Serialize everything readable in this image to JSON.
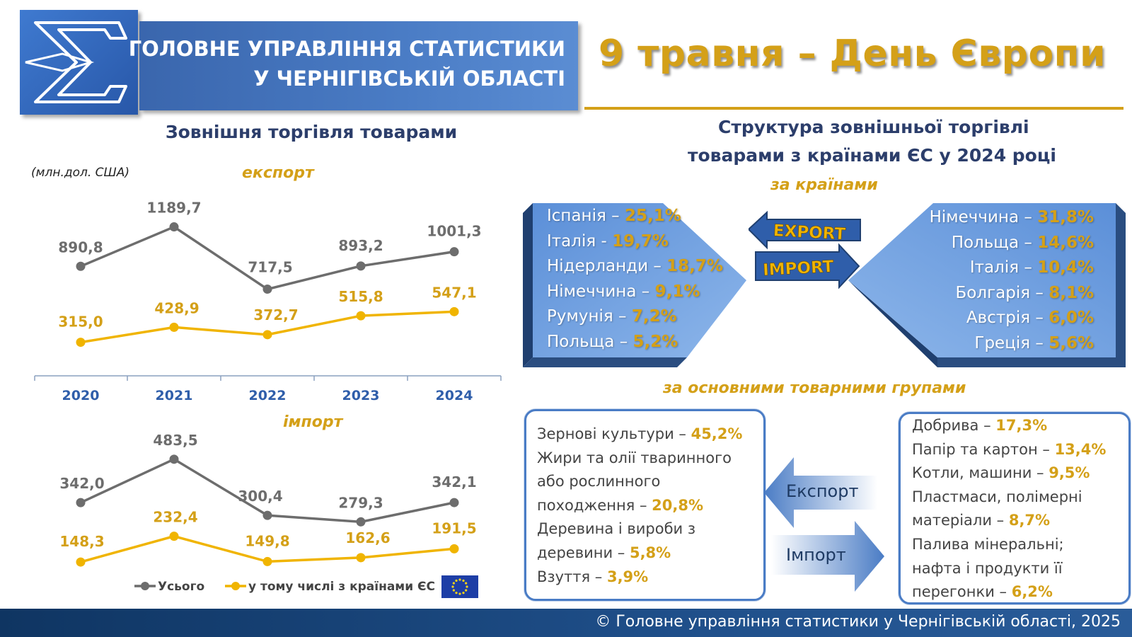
{
  "header": {
    "org_line1": "ГОЛОВНЕ УПРАВЛІННЯ СТАТИСТИКИ",
    "org_line2": "У ЧЕРНІГІВСЬКІЙ ОБЛАСТІ",
    "title": "9 травня – День Європи",
    "logo_icon": "sigma-logo-icon"
  },
  "left": {
    "heading": "Зовнішня торгівля товарами",
    "unit": "(млн.дол. США)"
  },
  "chart_data": [
    {
      "type": "line",
      "title": "експорт",
      "categories": [
        "2020",
        "2021",
        "2022",
        "2023",
        "2024"
      ],
      "series": [
        {
          "name": "Усього",
          "values": [
            890.8,
            1189.7,
            717.5,
            893.2,
            1001.3
          ],
          "labels": [
            "890,8",
            "1189,7",
            "717,5",
            "893,2",
            "1001,3"
          ],
          "color": "#6d6d6d"
        },
        {
          "name": "у тому числі з країнами ЄС",
          "values": [
            315.0,
            428.9,
            372.7,
            515.8,
            547.1
          ],
          "labels": [
            "315,0",
            "428,9",
            "372,7",
            "515,8",
            "547,1"
          ],
          "color": "#f0b400"
        }
      ],
      "ylim": [
        200,
        1300
      ]
    },
    {
      "type": "line",
      "title": "імпорт",
      "categories": [
        "2020",
        "2021",
        "2022",
        "2023",
        "2024"
      ],
      "series": [
        {
          "name": "Усього",
          "values": [
            342.0,
            483.5,
            300.4,
            279.3,
            342.1
          ],
          "labels": [
            "342,0",
            "483,5",
            "300,4",
            "279,3",
            "342,1"
          ],
          "color": "#6d6d6d"
        },
        {
          "name": "у тому числі з країнами ЄС",
          "values": [
            148.3,
            232.4,
            149.8,
            162.6,
            191.5
          ],
          "labels": [
            "148,3",
            "232,4",
            "149,8",
            "162,6",
            "191,5"
          ],
          "color": "#f0b400"
        }
      ],
      "ylim": [
        100,
        550
      ],
      "legend": {
        "position": "bottom",
        "items": [
          "Усього",
          "у тому числі з країнами ЄС"
        ]
      }
    }
  ],
  "right": {
    "heading_line1": "Структура зовнішньої торгівлі",
    "heading_line2": "товарами з країнами ЄС у 2024 році",
    "by_countries": "за країнами",
    "by_groups": "за основними товарними групами",
    "export_badge": "EXPORT",
    "import_badge": "IMPORT",
    "export_countries": [
      {
        "name": "Іспанія – ",
        "pct": "25,1%"
      },
      {
        "name": "Італія  - ",
        "pct": "19,7%"
      },
      {
        "name": "Нідерланди – ",
        "pct": "18,7%"
      },
      {
        "name": "Німеччина – ",
        "pct": "9,1%"
      },
      {
        "name": "Румунія – ",
        "pct": "7,2%"
      },
      {
        "name": "Польща – ",
        "pct": "5,2%"
      }
    ],
    "import_countries": [
      {
        "name": "Німеччина – ",
        "pct": "31,8%"
      },
      {
        "name": "Польща – ",
        "pct": "14,6%"
      },
      {
        "name": "Італія – ",
        "pct": "10,4%"
      },
      {
        "name": "Болгарія – ",
        "pct": "8,1%"
      },
      {
        "name": "Австрія – ",
        "pct": "6,0%"
      },
      {
        "name": "Греція – ",
        "pct": "5,6%"
      }
    ],
    "export_arrow_label": "Експорт",
    "import_arrow_label": "Імпорт",
    "export_groups": [
      {
        "text": "Зернові культури – ",
        "pct": "45,2%"
      },
      {
        "text": "Жири та олії тваринного",
        "pct": ""
      },
      {
        "text": "або рослинного",
        "pct": ""
      },
      {
        "text": "походження – ",
        "pct": "20,8%"
      },
      {
        "text": "Деревина і вироби з",
        "pct": ""
      },
      {
        "text": "деревини – ",
        "pct": "5,8%"
      },
      {
        "text": "Взуття – ",
        "pct": "3,9%"
      }
    ],
    "import_groups": [
      {
        "text": "Добрива – ",
        "pct": "17,3%"
      },
      {
        "text": "Папір та картон – ",
        "pct": "13,4%"
      },
      {
        "text": "Котли, машини – ",
        "pct": "9,5%"
      },
      {
        "text": "Пластмаси, полімерні",
        "pct": ""
      },
      {
        "text": "матеріали – ",
        "pct": "8,7%"
      },
      {
        "text": "Палива мінеральні;",
        "pct": ""
      },
      {
        "text": "нафта і продукти її",
        "pct": ""
      },
      {
        "text": "перегонки – ",
        "pct": "6,2%"
      }
    ]
  },
  "footer": {
    "text": "© Головне управління статистики у Чернігівській області, 2025"
  },
  "colors": {
    "gold": "#d4a018",
    "navy": "#2c3e6b",
    "blue": "#4a7cc5"
  }
}
